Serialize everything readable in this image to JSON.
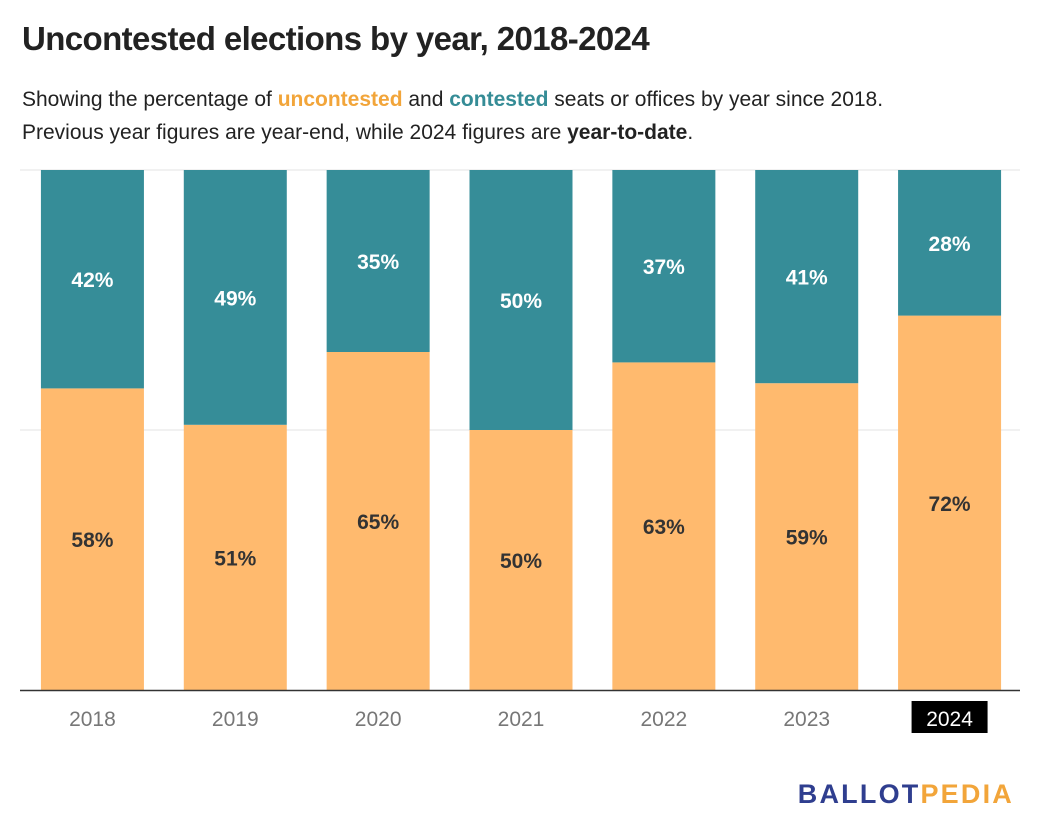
{
  "header": {
    "title": "Uncontested elections by year, 2018-2024",
    "subtitle": {
      "line1_part1": "Showing the percentage of ",
      "line1_kw_uncontested": "uncontested",
      "line1_part2": " and ",
      "line1_kw_contested": "contested",
      "line1_part3": " seats or offices by year since 2018.",
      "line2_part1": "Previous year figures are year-end, while 2024 figures are ",
      "line2_kw": "year-to-date",
      "line2_part2": "."
    }
  },
  "colors": {
    "uncontested": "#ffba6e",
    "contested": "#368d98",
    "uncontested_text": "#f2a53a",
    "contested_text": "#358c96",
    "highlight_tick_bg": "#000000",
    "highlight_tick_text": "#ffffff",
    "tick_text": "#777777",
    "gridline": "#e3e3e3",
    "axis": "#333333"
  },
  "chart_data": {
    "type": "bar",
    "stacked": true,
    "categories": [
      "2018",
      "2019",
      "2020",
      "2021",
      "2022",
      "2023",
      "2024"
    ],
    "series": [
      {
        "name": "uncontested",
        "values": [
          58,
          51,
          65,
          50,
          63,
          59,
          72
        ]
      },
      {
        "name": "contested",
        "values": [
          42,
          49,
          35,
          50,
          37,
          41,
          28
        ]
      }
    ],
    "ylim": [
      0,
      100
    ],
    "highlighted_category": "2024",
    "grid": true
  },
  "footer": {
    "logo_part1": "BALLOT",
    "logo_part2": "PEDIA"
  }
}
